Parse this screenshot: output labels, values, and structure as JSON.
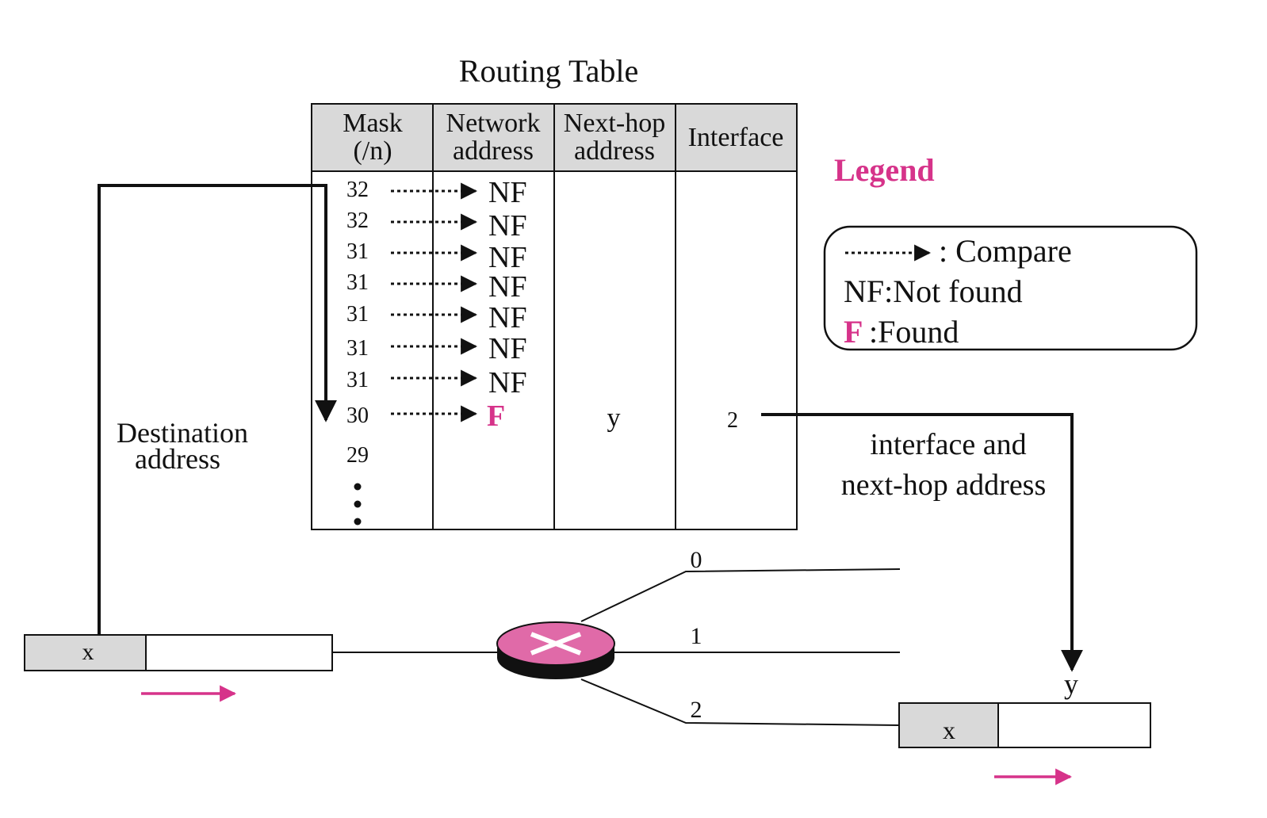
{
  "table": {
    "title": "Routing Table",
    "headers": {
      "mask_line1": "Mask",
      "mask_line2": "(/n)",
      "network_line1": "Network",
      "network_line2": "address",
      "nexthop_line1": "Next-hop",
      "nexthop_line2": "address",
      "interface": "Interface"
    },
    "rows": [
      {
        "mask": "32",
        "result": "NF"
      },
      {
        "mask": "32",
        "result": "NF"
      },
      {
        "mask": "31",
        "result": "NF"
      },
      {
        "mask": "31",
        "result": "NF"
      },
      {
        "mask": "31",
        "result": "NF"
      },
      {
        "mask": "31",
        "result": "NF"
      },
      {
        "mask": "31",
        "result": "NF"
      },
      {
        "mask": "30",
        "result": "F",
        "next_hop": "y",
        "interface": "2"
      },
      {
        "mask": "29"
      }
    ]
  },
  "legend": {
    "title": "Legend",
    "compare_text": ": Compare",
    "nf_text": "NF:Not found",
    "f_symbol": "F",
    "f_text": ":Found"
  },
  "labels": {
    "destination_line1": "Destination",
    "destination_line2": "address",
    "interface_line1": "interface and",
    "interface_line2": "next-hop address",
    "port_0": "0",
    "port_1": "1",
    "port_2": "2",
    "incoming_packet_dest": "x",
    "outgoing_packet_dest": "x",
    "outgoing_next_hop": "y"
  },
  "colors": {
    "accent": "#d6338a",
    "header_fill": "#d9d9d9",
    "router_fill": "#e06aa8"
  }
}
